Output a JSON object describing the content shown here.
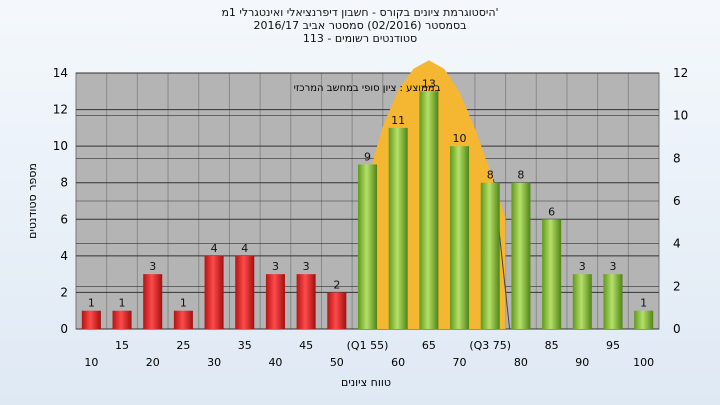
{
  "titles": {
    "line1": "'היסטוגרמת ציונים בקורס - חשבון דיפרנציאלי ואינטגרלי 1מ",
    "line2": "בסמסטר  (02/2016)  סמסטר אביב 2016/17",
    "line3": "סטודנטים רשומים - 113"
  },
  "chart_data": {
    "type": "bar",
    "title": "'היסטוגרמת ציונים בקורס - חשבון דיפרנציאלי ואינטגרלי 1מ",
    "subtitle": "בסמסטר  (02/2016)  סמסטר אביב 2016/17 / סטודנטים רשומים - 113",
    "xlabel": "טווח ציונים",
    "ylabel": "מספר סטודנטים",
    "ylim": [
      0,
      14
    ],
    "yticks": [
      0,
      2,
      4,
      6,
      8,
      10,
      12,
      14
    ],
    "y2lim": [
      0,
      12
    ],
    "y2ticks": [
      0,
      2,
      4,
      6,
      8,
      10,
      12
    ],
    "annotation": "בממוצע : ציון סופי במחשב המרכזי",
    "grid": true,
    "categories": [
      "10",
      "15",
      "20",
      "25",
      "30",
      "35",
      "40",
      "45",
      "50",
      "(Q1 55)",
      "60",
      "65",
      "70",
      "(Q3 75)",
      "80",
      "85",
      "90",
      "95",
      "100"
    ],
    "values": [
      1,
      1,
      3,
      1,
      4,
      4,
      3,
      3,
      2,
      9,
      11,
      13,
      10,
      8,
      8,
      6,
      3,
      3,
      1
    ],
    "bar_groups": [
      "low",
      "low",
      "low",
      "low",
      "low",
      "low",
      "low",
      "low",
      "low",
      "high",
      "high",
      "high",
      "high",
      "high",
      "high",
      "high",
      "high",
      "high",
      "high"
    ],
    "colors": {
      "low": "#e02020",
      "high": "#8cc63e",
      "curve": "#f5b731",
      "plot_bg": "#b4b4b4"
    },
    "distribution_curve": {
      "x": [
        55,
        57.5,
        60,
        62.5,
        65,
        67.5,
        70,
        72.5,
        75,
        77.5
      ],
      "y": [
        7,
        9.5,
        11.2,
        12.2,
        12.6,
        12.2,
        11.1,
        9.4,
        7.4,
        5.2
      ]
    }
  }
}
